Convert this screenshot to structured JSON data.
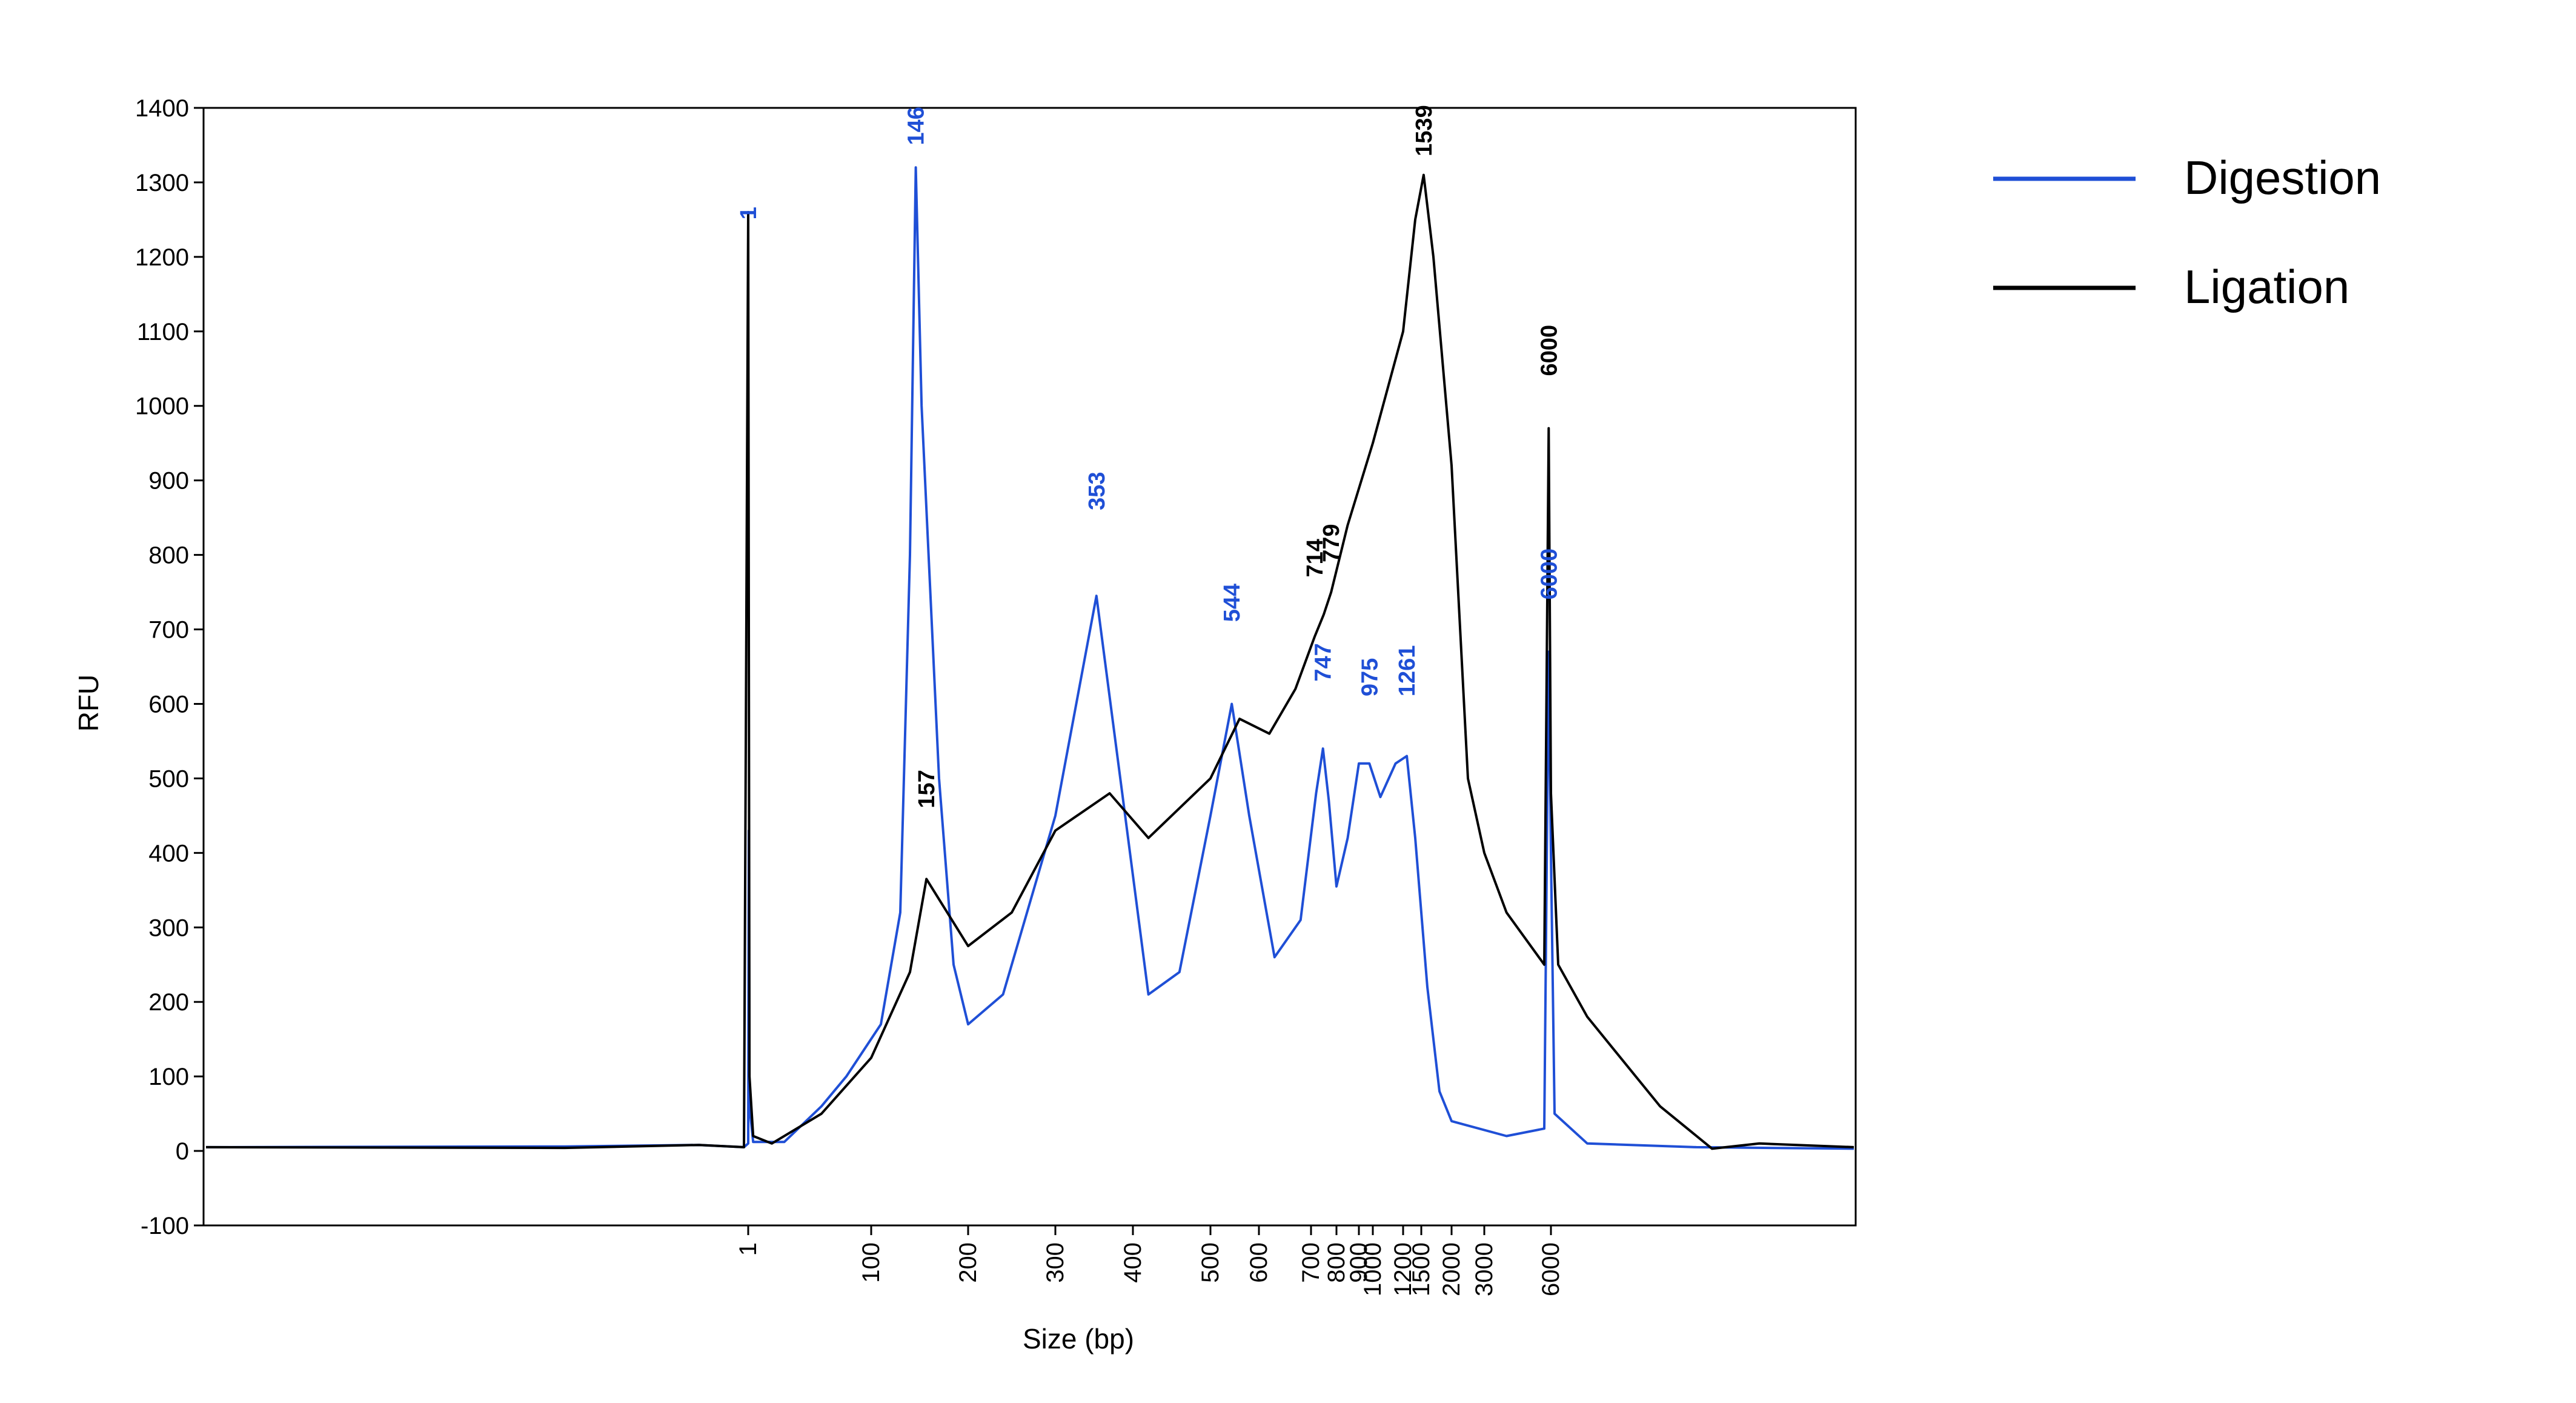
{
  "chart_data": {
    "type": "line",
    "xlabel": "Size (bp)",
    "ylabel": "RFU",
    "x_scale": "nonlinear (marker-calibrated)",
    "ylim": [
      -100,
      1400
    ],
    "yticks": [
      -100,
      0,
      100,
      200,
      300,
      400,
      500,
      600,
      700,
      800,
      900,
      1000,
      1100,
      1200,
      1300,
      1400
    ],
    "xticks": [
      "1",
      "100",
      "200",
      "300",
      "400",
      "500",
      "600",
      "700",
      "800",
      "900",
      "1000",
      "1200",
      "1500",
      "2000",
      "3000",
      "6000"
    ],
    "grid": false,
    "legend_position": "right",
    "series": [
      {
        "name": "Digestion",
        "color": "#1f4fd6",
        "points": [
          [
            -60,
            5
          ],
          [
            -20,
            6
          ],
          [
            -5,
            8
          ],
          [
            0,
            5
          ],
          [
            1,
            10
          ],
          [
            1.5,
            430
          ],
          [
            2,
            60
          ],
          [
            5,
            12
          ],
          [
            30,
            12
          ],
          [
            60,
            60
          ],
          [
            80,
            100
          ],
          [
            110,
            170
          ],
          [
            130,
            320
          ],
          [
            140,
            800
          ],
          [
            146,
            1320
          ],
          [
            152,
            1000
          ],
          [
            170,
            500
          ],
          [
            185,
            250
          ],
          [
            200,
            170
          ],
          [
            240,
            210
          ],
          [
            300,
            450
          ],
          [
            353,
            745
          ],
          [
            390,
            450
          ],
          [
            420,
            210
          ],
          [
            460,
            240
          ],
          [
            500,
            450
          ],
          [
            544,
            600
          ],
          [
            580,
            450
          ],
          [
            630,
            260
          ],
          [
            680,
            310
          ],
          [
            720,
            480
          ],
          [
            747,
            540
          ],
          [
            770,
            470
          ],
          [
            800,
            355
          ],
          [
            850,
            420
          ],
          [
            900,
            520
          ],
          [
            975,
            520
          ],
          [
            1050,
            475
          ],
          [
            1150,
            520
          ],
          [
            1261,
            530
          ],
          [
            1400,
            420
          ],
          [
            1600,
            220
          ],
          [
            1800,
            80
          ],
          [
            2000,
            40
          ],
          [
            4000,
            20
          ],
          [
            5700,
            30
          ],
          [
            5900,
            670
          ],
          [
            6000,
            400
          ],
          [
            6100,
            50
          ],
          [
            7000,
            10
          ],
          [
            10000,
            5
          ],
          [
            20000,
            3
          ]
        ]
      },
      {
        "name": "Ligation",
        "color": "#000000",
        "points": [
          [
            -60,
            5
          ],
          [
            -20,
            4
          ],
          [
            -5,
            8
          ],
          [
            0,
            5
          ],
          [
            1,
            1260
          ],
          [
            2,
            100
          ],
          [
            5,
            20
          ],
          [
            20,
            10
          ],
          [
            60,
            50
          ],
          [
            100,
            125
          ],
          [
            140,
            240
          ],
          [
            157,
            365
          ],
          [
            200,
            275
          ],
          [
            250,
            320
          ],
          [
            300,
            430
          ],
          [
            370,
            480
          ],
          [
            420,
            420
          ],
          [
            500,
            500
          ],
          [
            560,
            580
          ],
          [
            620,
            560
          ],
          [
            670,
            620
          ],
          [
            714,
            690
          ],
          [
            750,
            720
          ],
          [
            779,
            750
          ],
          [
            850,
            840
          ],
          [
            1000,
            950
          ],
          [
            1200,
            1100
          ],
          [
            1400,
            1250
          ],
          [
            1539,
            1310
          ],
          [
            1700,
            1200
          ],
          [
            2000,
            920
          ],
          [
            2500,
            500
          ],
          [
            3000,
            400
          ],
          [
            4000,
            320
          ],
          [
            5700,
            250
          ],
          [
            5900,
            970
          ],
          [
            6000,
            480
          ],
          [
            6200,
            250
          ],
          [
            7000,
            180
          ],
          [
            9000,
            60
          ],
          [
            11000,
            3
          ],
          [
            14000,
            10
          ],
          [
            20000,
            5
          ]
        ]
      }
    ],
    "annotations": [
      {
        "text": "1",
        "series": "Digestion",
        "x": 1,
        "y": 1250
      },
      {
        "text": "146",
        "series": "Digestion",
        "x": 146,
        "y": 1350
      },
      {
        "text": "353",
        "series": "Digestion",
        "x": 353,
        "y": 860
      },
      {
        "text": "544",
        "series": "Digestion",
        "x": 544,
        "y": 710
      },
      {
        "text": "747",
        "series": "Digestion",
        "x": 747,
        "y": 630
      },
      {
        "text": "975",
        "series": "Digestion",
        "x": 975,
        "y": 610
      },
      {
        "text": "1261",
        "series": "Digestion",
        "x": 1261,
        "y": 610
      },
      {
        "text": "6000",
        "series": "Digestion",
        "x": 5900,
        "y": 740
      },
      {
        "text": "157",
        "series": "Ligation",
        "x": 157,
        "y": 460
      },
      {
        "text": "714",
        "series": "Ligation",
        "x": 714,
        "y": 770
      },
      {
        "text": "779",
        "series": "Ligation",
        "x": 779,
        "y": 790
      },
      {
        "text": "1539",
        "series": "Ligation",
        "x": 1539,
        "y": 1335
      },
      {
        "text": "6000",
        "series": "Ligation",
        "x": 5900,
        "y": 1040
      }
    ]
  }
}
